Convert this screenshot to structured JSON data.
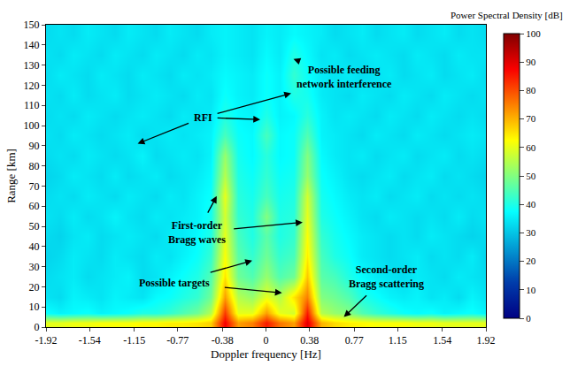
{
  "chart_data": {
    "type": "heatmap",
    "color": "Jet",
    "x_label": "Doppler frequency [Hz]",
    "y_label": "Range [km]",
    "xlim": [
      -1.92,
      1.92
    ],
    "xticks": [
      -1.92,
      -1.54,
      -1.15,
      -0.77,
      -0.38,
      0,
      0.38,
      0.77,
      1.15,
      1.54,
      1.92
    ],
    "ylim": [
      0,
      150
    ],
    "yticks": [
      0,
      10,
      20,
      30,
      40,
      50,
      60,
      70,
      80,
      90,
      100,
      110,
      120,
      130,
      140,
      150
    ],
    "colorbar": {
      "title": "Power Spectral Density [dB]",
      "range": [
        0,
        100
      ],
      "ticks": [
        0,
        10,
        20,
        30,
        40,
        50,
        60,
        70,
        80,
        90,
        100
      ]
    },
    "x": [
      -1.92,
      -1.8,
      -1.68,
      -1.56,
      -1.44,
      -1.32,
      -1.2,
      -1.08,
      -0.96,
      -0.84,
      -0.72,
      -0.6,
      -0.48,
      -0.36,
      -0.24,
      -0.12,
      0,
      0.12,
      0.24,
      0.36,
      0.48,
      0.6,
      0.72,
      0.84,
      0.96,
      1.08,
      1.2,
      1.32,
      1.44,
      1.56,
      1.68,
      1.8,
      1.92
    ],
    "y": [
      2,
      7,
      15,
      25,
      35,
      45,
      55,
      65,
      75,
      85,
      95,
      105,
      115,
      125,
      135,
      145
    ],
    "z": [
      [
        60,
        60,
        61,
        61,
        62,
        62,
        62,
        63,
        63,
        64,
        64,
        65,
        67,
        88,
        72,
        75,
        85,
        76,
        72,
        90,
        70,
        66,
        64,
        63,
        62,
        62,
        62,
        61,
        61,
        60,
        60,
        60,
        60
      ],
      [
        38,
        36,
        37,
        38,
        36,
        37,
        38,
        40,
        40,
        42,
        45,
        48,
        55,
        82,
        60,
        60,
        72,
        60,
        58,
        85,
        55,
        52,
        50,
        45,
        42,
        40,
        38,
        37,
        38,
        36,
        37,
        38,
        36
      ],
      [
        34,
        33,
        36,
        35,
        34,
        36,
        35,
        34,
        37,
        38,
        40,
        42,
        48,
        72,
        55,
        52,
        60,
        55,
        65,
        75,
        50,
        48,
        45,
        40,
        38,
        36,
        35,
        36,
        34,
        35,
        33,
        36,
        34
      ],
      [
        33,
        34,
        35,
        33,
        34,
        35,
        36,
        33,
        34,
        36,
        38,
        40,
        45,
        65,
        48,
        45,
        52,
        45,
        48,
        68,
        46,
        44,
        40,
        37,
        35,
        34,
        33,
        35,
        34,
        33,
        35,
        34,
        33
      ],
      [
        32,
        33,
        35,
        34,
        33,
        35,
        34,
        33,
        35,
        34,
        36,
        38,
        42,
        62,
        46,
        42,
        48,
        42,
        44,
        64,
        44,
        40,
        38,
        35,
        34,
        33,
        34,
        35,
        33,
        34,
        33,
        35,
        32
      ],
      [
        33,
        32,
        34,
        35,
        33,
        34,
        35,
        34,
        33,
        35,
        35,
        37,
        40,
        60,
        44,
        40,
        46,
        40,
        42,
        62,
        42,
        39,
        37,
        35,
        34,
        33,
        34,
        33,
        35,
        34,
        33,
        32,
        33
      ],
      [
        34,
        33,
        35,
        33,
        34,
        36,
        34,
        33,
        35,
        34,
        35,
        36,
        39,
        58,
        42,
        40,
        50,
        40,
        41,
        60,
        40,
        38,
        36,
        34,
        33,
        35,
        34,
        33,
        34,
        33,
        35,
        33,
        34
      ],
      [
        33,
        34,
        33,
        35,
        34,
        33,
        35,
        34,
        33,
        35,
        34,
        36,
        38,
        60,
        41,
        39,
        44,
        39,
        40,
        58,
        39,
        37,
        35,
        34,
        35,
        33,
        34,
        35,
        33,
        34,
        33,
        34,
        33
      ],
      [
        32,
        33,
        35,
        34,
        33,
        35,
        33,
        34,
        35,
        33,
        34,
        35,
        37,
        55,
        40,
        38,
        42,
        38,
        39,
        52,
        38,
        36,
        34,
        33,
        34,
        35,
        33,
        34,
        35,
        33,
        34,
        33,
        32
      ],
      [
        33,
        34,
        33,
        35,
        34,
        33,
        34,
        36,
        33,
        34,
        35,
        34,
        36,
        52,
        39,
        37,
        41,
        37,
        38,
        50,
        37,
        35,
        34,
        35,
        33,
        34,
        35,
        33,
        34,
        35,
        33,
        34,
        33
      ],
      [
        34,
        33,
        35,
        34,
        33,
        34,
        35,
        33,
        34,
        35,
        34,
        35,
        36,
        44,
        38,
        37,
        44,
        37,
        38,
        45,
        36,
        35,
        34,
        33,
        35,
        34,
        33,
        35,
        34,
        33,
        34,
        35,
        34
      ],
      [
        33,
        34,
        33,
        35,
        34,
        33,
        34,
        35,
        34,
        33,
        35,
        34,
        35,
        40,
        37,
        36,
        40,
        36,
        37,
        41,
        36,
        34,
        35,
        34,
        33,
        35,
        34,
        33,
        35,
        34,
        33,
        34,
        33
      ],
      [
        34,
        33,
        35,
        33,
        34,
        35,
        33,
        34,
        35,
        34,
        33,
        35,
        34,
        38,
        36,
        35,
        38,
        36,
        40,
        39,
        35,
        34,
        33,
        35,
        34,
        33,
        35,
        34,
        33,
        35,
        34,
        33,
        34
      ],
      [
        33,
        35,
        34,
        33,
        35,
        34,
        33,
        35,
        34,
        33,
        35,
        34,
        35,
        37,
        36,
        35,
        38,
        36,
        42,
        38,
        35,
        34,
        35,
        33,
        34,
        35,
        33,
        34,
        35,
        33,
        34,
        35,
        33
      ],
      [
        34,
        33,
        35,
        34,
        33,
        35,
        34,
        33,
        35,
        34,
        33,
        35,
        34,
        36,
        35,
        34,
        37,
        35,
        40,
        37,
        34,
        35,
        33,
        34,
        35,
        34,
        33,
        35,
        34,
        33,
        35,
        34,
        34
      ],
      [
        33,
        34,
        33,
        35,
        34,
        33,
        35,
        34,
        33,
        35,
        34,
        33,
        35,
        36,
        35,
        34,
        36,
        35,
        37,
        36,
        35,
        33,
        34,
        35,
        33,
        34,
        35,
        33,
        34,
        35,
        33,
        34,
        33
      ]
    ],
    "annotations": [
      {
        "text": [
          "Possible feeding",
          "network interference"
        ],
        "at": [
          0.68,
          124
        ],
        "points": [
          [
            0.24,
            133
          ]
        ]
      },
      {
        "text": [
          "RFI"
        ],
        "at": [
          -0.55,
          104
        ],
        "points": [
          [
            -1.12,
            91
          ],
          [
            -0.05,
            103
          ],
          [
            0.22,
            116
          ]
        ]
      },
      {
        "text": [
          "First-order",
          "Bragg waves"
        ],
        "at": [
          -0.6,
          47
        ],
        "points": [
          [
            -0.43,
            65
          ],
          [
            0.32,
            52
          ]
        ]
      },
      {
        "text": [
          "Possible targets"
        ],
        "at": [
          -0.8,
          22
        ],
        "points": [
          [
            -0.12,
            33
          ],
          [
            0.14,
            17
          ]
        ]
      },
      {
        "text": [
          "Second-order",
          "Bragg scattering"
        ],
        "at": [
          1.05,
          25
        ],
        "points": [
          [
            0.68,
            5
          ]
        ]
      }
    ]
  }
}
